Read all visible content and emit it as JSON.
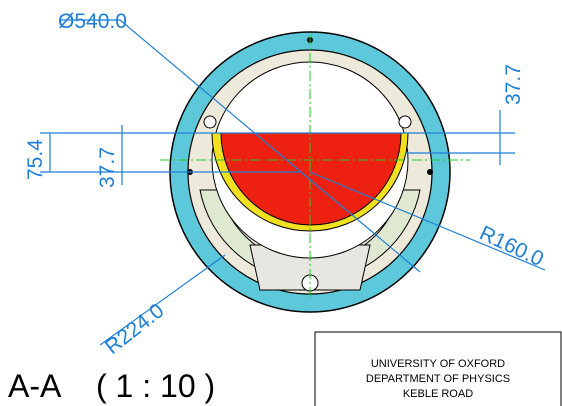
{
  "dimensions": {
    "diameter": "Ø540.0",
    "offset_right": "37.7",
    "height_left": "75.4",
    "offset_left": "37.7",
    "inner_radius": "R160.0",
    "outer_radius": "R224.0"
  },
  "section": {
    "label": "A-A",
    "scale": "( 1 : 10 )"
  },
  "title_block": {
    "lines": [
      "UNIVERSITY OF OXFORD",
      "DEPARTMENT OF PHYSICS",
      "KEBLE ROAD"
    ]
  }
}
